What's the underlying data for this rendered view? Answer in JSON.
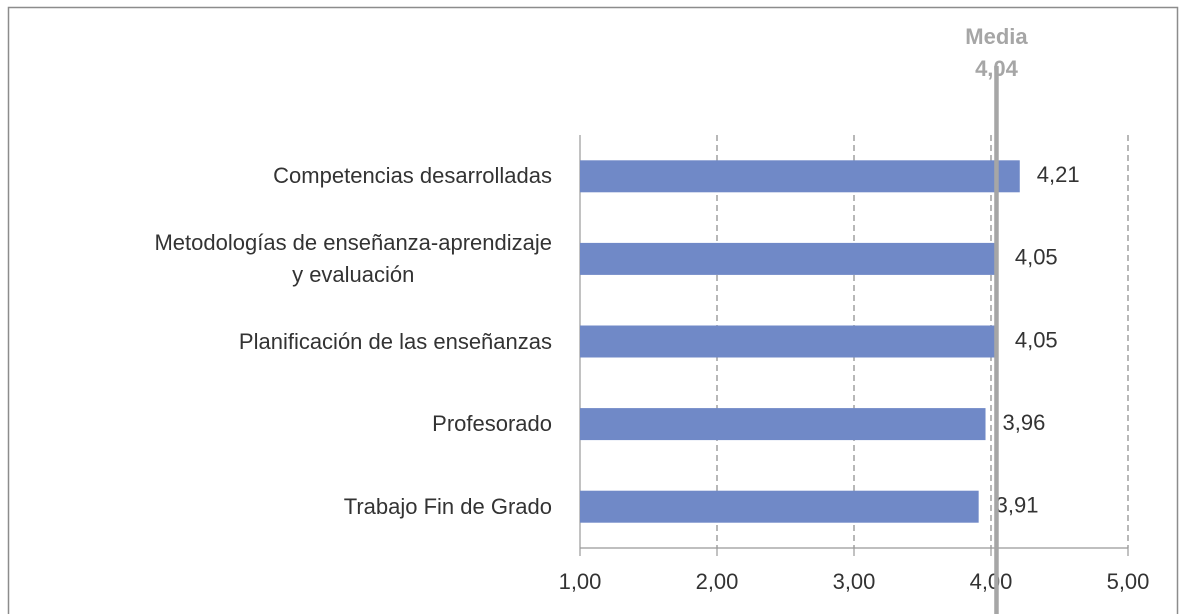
{
  "chart_data": {
    "type": "hbar",
    "categories": [
      "Competencias desarrolladas",
      "Metodologías de enseñanza-aprendizaje\ny evaluación",
      "Planificación de las enseñanzas",
      "Profesorado",
      "Trabajo Fin de Grado"
    ],
    "values": [
      4.21,
      4.05,
      4.05,
      3.96,
      3.91
    ],
    "value_labels": [
      "4,21",
      "4,05",
      "4,05",
      "3,96",
      "3,91"
    ],
    "color": "#7089c7",
    "xlim": [
      1,
      5
    ],
    "xticks": [
      {
        "value": 1,
        "label": "1,00"
      },
      {
        "value": 2,
        "label": "2,00"
      },
      {
        "value": 3,
        "label": "3,00"
      },
      {
        "value": 4,
        "label": "4,00"
      },
      {
        "value": 5,
        "label": "5,00"
      }
    ],
    "grid": true,
    "mean": {
      "label": "Media",
      "value": 4.04,
      "value_label": "4,04"
    }
  }
}
